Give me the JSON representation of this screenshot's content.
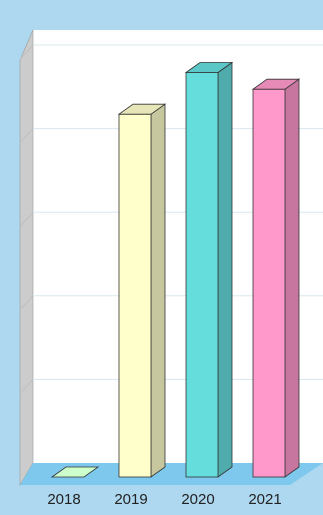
{
  "chart_data": {
    "type": "bar",
    "style": "3d-column",
    "categories": [
      "2018",
      "2019",
      "2020",
      "2021"
    ],
    "values": [
      0,
      4.35,
      4.85,
      4.65
    ],
    "ylim": [
      0,
      5
    ],
    "grid": true,
    "legend": "none",
    "title": "",
    "xlabel": "",
    "ylabel": "",
    "colors": {
      "bars": [
        "#ccffcc",
        "#ffffcc",
        "#66dddd",
        "#ff99cc"
      ],
      "background": "#add8f0",
      "floor": "#7ec8ee",
      "left_wall": "#cccccc",
      "plot_area": "#ffffff",
      "gridline": "#d8e8ee"
    }
  }
}
